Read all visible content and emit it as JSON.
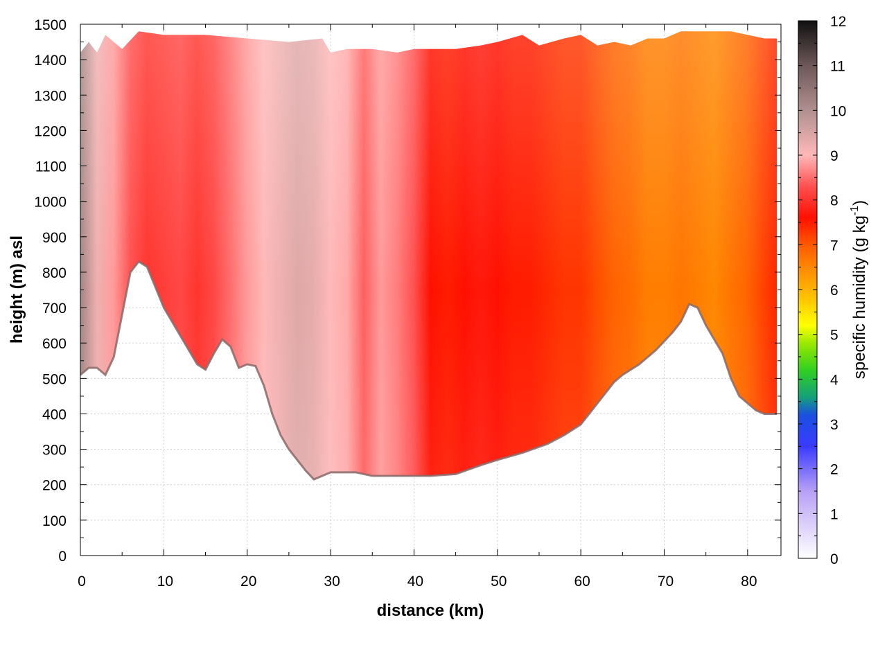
{
  "chart_data": {
    "type": "heatmap",
    "title": "",
    "xlabel": "distance (km)",
    "ylabel": "height (m) asl",
    "colorbar": {
      "label": "specific humidity (g kg",
      "label_sup": "-1",
      "label_end": ")",
      "range": [
        0,
        12
      ],
      "ticks": [
        0,
        1,
        2,
        3,
        4,
        5,
        6,
        7,
        8,
        9,
        10,
        11,
        12
      ],
      "palette": [
        {
          "v": 0,
          "c": "#ffffff"
        },
        {
          "v": 1.5,
          "c": "#b7a0f5"
        },
        {
          "v": 2.5,
          "c": "#3a3aff"
        },
        {
          "v": 3.2,
          "c": "#1a50e0"
        },
        {
          "v": 3.6,
          "c": "#14a07a"
        },
        {
          "v": 4.2,
          "c": "#30d020"
        },
        {
          "v": 4.8,
          "c": "#9ae800"
        },
        {
          "v": 5.2,
          "c": "#ffff00"
        },
        {
          "v": 5.8,
          "c": "#ffc400"
        },
        {
          "v": 6.4,
          "c": "#ff9000"
        },
        {
          "v": 7.0,
          "c": "#ff5a00"
        },
        {
          "v": 7.6,
          "c": "#ff1000"
        },
        {
          "v": 8.3,
          "c": "#ff5050"
        },
        {
          "v": 9.0,
          "c": "#ffb8b8"
        },
        {
          "v": 10.0,
          "c": "#b09090"
        },
        {
          "v": 11.0,
          "c": "#6e5858"
        },
        {
          "v": 12.0,
          "c": "#101010"
        }
      ]
    },
    "xlim": [
      0,
      84
    ],
    "ylim": [
      0,
      1500
    ],
    "xticks": [
      0,
      10,
      20,
      30,
      40,
      50,
      60,
      70,
      80
    ],
    "yticks": [
      0,
      100,
      200,
      300,
      400,
      500,
      600,
      700,
      800,
      900,
      1000,
      1100,
      1200,
      1300,
      1400,
      1500
    ],
    "grid": true,
    "terrain": {
      "x": [
        0,
        1,
        2,
        3,
        4,
        5,
        6,
        7,
        8,
        10,
        12,
        14,
        15,
        16,
        17,
        18,
        19,
        20,
        21,
        22,
        23,
        24,
        25,
        26,
        27,
        28,
        30,
        33,
        35,
        40,
        42,
        45,
        48,
        50,
        53,
        56,
        58,
        60,
        62,
        64,
        65,
        67,
        69,
        71,
        72,
        73,
        74,
        75,
        76,
        77,
        78,
        79,
        80,
        81,
        82,
        83.5
      ],
      "y": [
        510,
        530,
        530,
        510,
        560,
        680,
        800,
        830,
        815,
        700,
        620,
        540,
        525,
        570,
        610,
        590,
        530,
        540,
        535,
        480,
        400,
        340,
        300,
        270,
        240,
        215,
        235,
        235,
        225,
        225,
        225,
        230,
        255,
        270,
        290,
        315,
        340,
        370,
        430,
        490,
        510,
        540,
        580,
        630,
        660,
        710,
        700,
        650,
        610,
        570,
        500,
        450,
        430,
        410,
        400,
        400
      ]
    },
    "top_boundary": {
      "x": [
        0,
        1,
        2,
        3,
        5,
        7,
        10,
        15,
        20,
        25,
        29,
        30,
        32,
        35,
        38,
        40,
        43,
        45,
        48,
        50,
        53,
        55,
        58,
        60,
        62,
        64,
        66,
        68,
        70,
        72,
        74,
        76,
        78,
        80,
        82,
        83.5
      ],
      "y": [
        1420,
        1450,
        1420,
        1470,
        1430,
        1480,
        1470,
        1470,
        1460,
        1450,
        1460,
        1420,
        1430,
        1430,
        1420,
        1430,
        1430,
        1430,
        1440,
        1450,
        1470,
        1440,
        1460,
        1470,
        1440,
        1450,
        1440,
        1460,
        1460,
        1480,
        1480,
        1480,
        1480,
        1470,
        1460,
        1460
      ]
    },
    "humidity_profile": {
      "x": [
        0,
        2,
        4,
        6,
        8,
        10,
        12,
        14,
        16,
        18,
        20,
        22,
        24,
        26,
        28,
        30,
        32,
        34,
        36,
        38,
        40,
        42,
        44,
        46,
        48,
        50,
        52,
        54,
        56,
        58,
        60,
        62,
        64,
        66,
        68,
        70,
        72,
        74,
        76,
        78,
        80,
        82,
        84
      ],
      "q": [
        10.2,
        9.2,
        8.8,
        8.3,
        8.0,
        8.1,
        8.2,
        8.0,
        8.2,
        8.5,
        8.8,
        9.0,
        9.2,
        9.4,
        9.3,
        9.0,
        8.9,
        8.4,
        8.8,
        8.6,
        8.3,
        7.6,
        7.5,
        7.6,
        7.7,
        7.6,
        7.5,
        7.5,
        7.4,
        7.3,
        7.3,
        7.1,
        6.9,
        6.8,
        6.6,
        6.6,
        6.7,
        6.6,
        6.5,
        6.7,
        6.9,
        7.2,
        7.5
      ]
    }
  }
}
